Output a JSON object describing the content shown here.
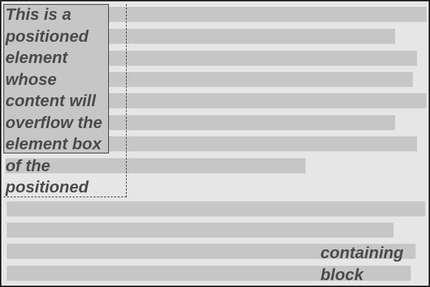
{
  "diagram": {
    "positioned_element": {
      "text": "This is a positioned element whose content will overflow the element box of the positioned"
    },
    "containing_block_label": "containing block"
  },
  "colors": {
    "canvas_background": "#e6e6e6",
    "bar_fill": "#c6c6c6",
    "text": "#4a4a4a",
    "border": "#222222"
  }
}
